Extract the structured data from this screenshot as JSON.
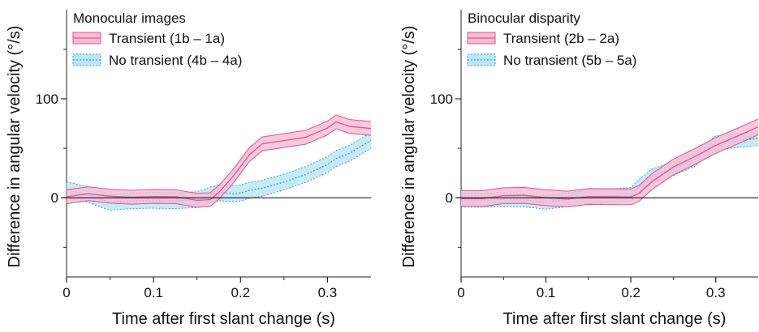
{
  "chart_data": [
    {
      "type": "line",
      "title": "Monocular images",
      "xlabel": "Time after first slant change (s)",
      "ylabel": "Difference in angular velocity (°/s)",
      "xlim": [
        0,
        0.35
      ],
      "ylim": [
        -80,
        190
      ],
      "x_ticks": [
        0,
        0.1,
        0.2,
        0.3
      ],
      "x_tick_labels": [
        "0",
        "0.1",
        "0.2",
        "0.3"
      ],
      "y_ticks": [
        0,
        100
      ],
      "y_tick_labels": [
        "0",
        "100"
      ],
      "x": [
        0,
        0.025,
        0.05,
        0.075,
        0.1,
        0.125,
        0.15,
        0.165,
        0.175,
        0.19,
        0.2,
        0.21,
        0.225,
        0.25,
        0.275,
        0.3,
        0.31,
        0.325,
        0.35
      ],
      "series": [
        {
          "name": "Transient (1b – 1a)",
          "color": "#e0528f",
          "fill": "#f6bcd4",
          "values": [
            1,
            2,
            1,
            1,
            0,
            0,
            -1,
            0,
            5,
            20,
            33,
            43,
            52,
            57,
            62,
            70,
            76,
            74,
            72
          ],
          "band": 7
        },
        {
          "name": "No transient (4b – 4a)",
          "color": "#2aa7d8",
          "fill": "#bde6f6",
          "values": [
            6,
            2,
            -3,
            -2,
            -3,
            -2,
            0,
            2,
            3,
            4,
            5,
            6,
            9,
            18,
            25,
            33,
            40,
            46,
            57
          ],
          "band": 8
        }
      ]
    },
    {
      "type": "line",
      "title": "Binocular disparity",
      "xlabel": "Time after first slant change (s)",
      "ylabel": "Difference in angular velocity (°/s)",
      "xlim": [
        0,
        0.35
      ],
      "ylim": [
        -80,
        190
      ],
      "x_ticks": [
        0,
        0.1,
        0.2,
        0.3
      ],
      "x_tick_labels": [
        "0",
        "0.1",
        "0.2",
        "0.3"
      ],
      "y_ticks": [
        0,
        100
      ],
      "y_tick_labels": [
        "0",
        "100"
      ],
      "x": [
        0,
        0.025,
        0.05,
        0.075,
        0.1,
        0.125,
        0.15,
        0.175,
        0.2,
        0.21,
        0.225,
        0.25,
        0.275,
        0.3,
        0.325,
        0.35
      ],
      "series": [
        {
          "name": "Transient (2b – 2a)",
          "color": "#e0528f",
          "fill": "#f6bcd4",
          "values": [
            -1,
            0,
            1,
            0,
            0,
            0,
            1,
            1,
            3,
            6,
            15,
            30,
            42,
            52,
            60,
            72
          ],
          "band": 8
        },
        {
          "name": "No transient (5b – 5a)",
          "color": "#2aa7d8",
          "fill": "#bde6f6",
          "values": [
            -2,
            -2,
            -3,
            -2,
            -2,
            -1,
            0,
            2,
            4,
            10,
            20,
            30,
            40,
            55,
            58,
            62
          ],
          "band": 7
        }
      ]
    }
  ]
}
